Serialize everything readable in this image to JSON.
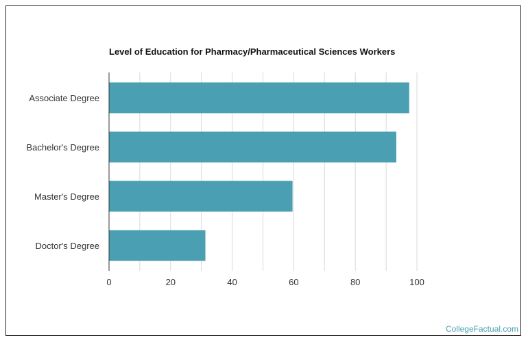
{
  "chart_data": {
    "type": "bar",
    "orientation": "horizontal",
    "title": "Level of Education for Pharmacy/Pharmaceutical Sciences Workers",
    "categories": [
      "Associate Degree",
      "Bachelor's Degree",
      "Master's Degree",
      "Doctor's Degree"
    ],
    "values": [
      97.5,
      93.3,
      59.6,
      31.3
    ],
    "x_ticks": [
      0,
      20,
      40,
      60,
      80,
      100
    ],
    "x_tick_labels": [
      "0",
      "20",
      "40",
      "60",
      "80",
      "100"
    ],
    "xlim": [
      0,
      100
    ],
    "xlabel": "",
    "ylabel": "",
    "grid": true,
    "bar_color": "#4aa0b2",
    "grid_color": "#d9d9d9",
    "axis_color": "#333333"
  },
  "watermark": "CollegeFactual.com"
}
